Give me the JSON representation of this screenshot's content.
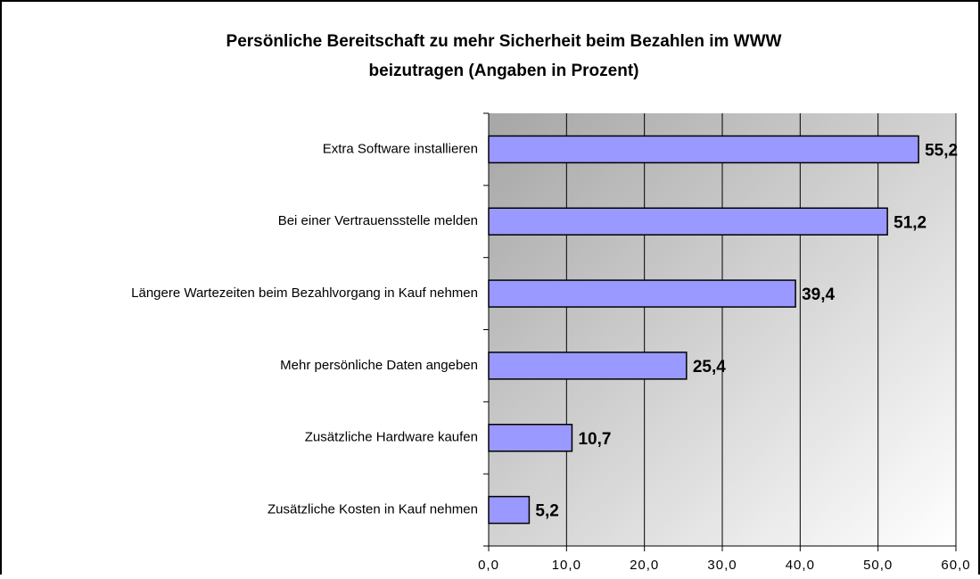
{
  "chart_data": {
    "type": "hbar",
    "title": [
      "Persönliche Bereitschaft zu mehr Sicherheit beim Bezahlen im WWW",
      "beizutragen (Angaben in Prozent)"
    ],
    "categories": [
      "Extra Software installieren",
      "Bei einer Vertrauensstelle melden",
      "Längere Wartezeiten beim Bezahlvorgang in Kauf nehmen",
      "Mehr persönliche Daten angeben",
      "Zusätzliche Hardware kaufen",
      "Zusätzliche Kosten in Kauf nehmen"
    ],
    "values": [
      55.2,
      51.2,
      39.4,
      25.4,
      10.7,
      5.2
    ],
    "value_labels": [
      "55,2",
      "51,2",
      "39,4",
      "25,4",
      "10,7",
      "5,2"
    ],
    "color": "#9999ff",
    "xlim": [
      0,
      60
    ],
    "xticks": [
      {
        "value": 0,
        "label": "0,0"
      },
      {
        "value": 10,
        "label": "10,0"
      },
      {
        "value": 20,
        "label": "20,0"
      },
      {
        "value": 30,
        "label": "30,0"
      },
      {
        "value": 40,
        "label": "40,0"
      },
      {
        "value": 50,
        "label": "50,0"
      },
      {
        "value": 60,
        "label": "60,0"
      }
    ],
    "grid": true
  }
}
